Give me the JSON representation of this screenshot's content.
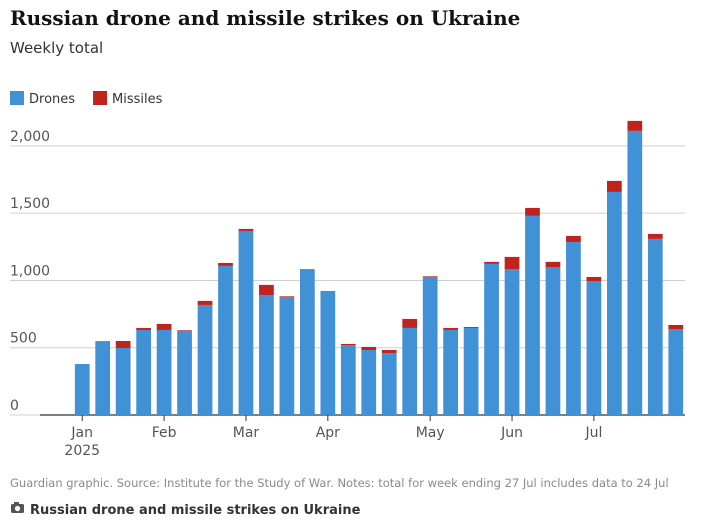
{
  "chart_data": {
    "type": "stacked-bar",
    "title": "Russian drone and missile strikes on Ukraine",
    "subtitle": "Weekly total",
    "source": "Guardian graphic. Source: Institute for the Study of War. Notes: total for week ending 27 Jul includes data to 24 Jul",
    "caption": "Russian drone and missile strikes on Ukraine",
    "categories": [
      "Jan",
      null,
      null,
      null,
      "Feb",
      null,
      null,
      null,
      "Mar",
      null,
      null,
      null,
      "Apr",
      null,
      null,
      null,
      null,
      "May",
      null,
      null,
      null,
      "Jun",
      null,
      null,
      null,
      "Jul",
      null,
      null,
      null,
      null
    ],
    "x_year_label": "2025",
    "series": [
      {
        "name": "Drones",
        "color": "#4091d6",
        "values": [
          379,
          543,
          498,
          632,
          632,
          625,
          818,
          1108,
          1368,
          892,
          877,
          1078,
          922,
          520,
          483,
          461,
          647,
          1026,
          632,
          647,
          1123,
          1085,
          1480,
          1100,
          1286,
          996,
          1658,
          2112,
          1309,
          639
        ]
      },
      {
        "name": "Missiles",
        "color": "#c0231c",
        "values": [
          0,
          5,
          52,
          15,
          45,
          5,
          30,
          22,
          15,
          75,
          5,
          5,
          0,
          8,
          23,
          22,
          67,
          5,
          15,
          7,
          15,
          90,
          59,
          38,
          45,
          30,
          82,
          74,
          37,
          30
        ]
      }
    ],
    "ylim": [
      0,
      2200
    ],
    "yticks": [
      0,
      500,
      {
        "value": 1000,
        "label": "1,000"
      },
      {
        "value": 1500,
        "label": "1,500"
      },
      {
        "value": 2000,
        "label": "2,000"
      }
    ],
    "grid": true
  }
}
